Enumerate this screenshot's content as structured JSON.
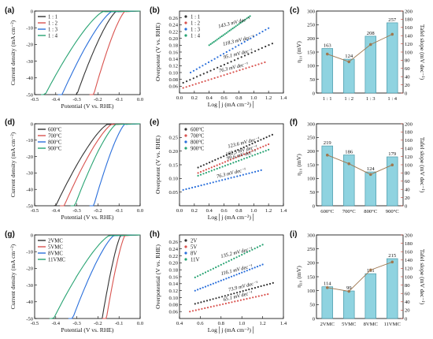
{
  "panels": [
    {
      "id": "a",
      "label": "(a)",
      "type": "line",
      "xlabel": "Potential (V vs. RHE)",
      "ylabel": "Current density (mA cm⁻²)",
      "xlim": [
        -0.5,
        0.0
      ],
      "ylim": [
        -50,
        0
      ],
      "xticks": [
        "-0.5",
        "-0.4",
        "-0.3",
        "-0.2",
        "-0.1",
        "0.0"
      ],
      "yticks": [
        "-50",
        "-40",
        "-30",
        "-20",
        "-10",
        "0"
      ],
      "series": [
        {
          "name": "1 : 1",
          "color": "#333333",
          "onset": -0.11,
          "x50": -0.3
        },
        {
          "name": "1 : 2",
          "color": "#d9534f",
          "onset": -0.07,
          "x50": -0.22
        },
        {
          "name": "1 : 3",
          "color": "#2a6fdb",
          "onset": -0.13,
          "x50": -0.37
        },
        {
          "name": "1 : 4",
          "color": "#27a372",
          "onset": -0.17,
          "x50": -0.45
        }
      ]
    },
    {
      "id": "b",
      "label": "(b)",
      "type": "scatter",
      "xlabel": "Log│j (mA cm⁻²)│",
      "ylabel": "Overpotent (V vs. RHE)",
      "xlim": [
        0.0,
        1.4
      ],
      "ylim": [
        0.04,
        0.28
      ],
      "xticks": [
        "0.0",
        "0.2",
        "0.4",
        "0.6",
        "0.8",
        "1.0",
        "1.2",
        "1.4"
      ],
      "yticks": [
        "0.06",
        "0.08",
        "0.10",
        "0.12",
        "0.14",
        "0.16",
        "0.18",
        "0.20",
        "0.22",
        "0.24",
        "0.26"
      ],
      "series": [
        {
          "name": "1 : 1",
          "color": "#333333",
          "x0": 0.05,
          "x1": 1.25,
          "y0": 0.07,
          "y1": 0.185,
          "tafel": "95.1 mV dec⁻¹"
        },
        {
          "name": "1 : 2",
          "color": "#d9534f",
          "x0": 0.05,
          "x1": 1.15,
          "y0": 0.055,
          "y1": 0.13,
          "tafel": "76.3 mV dec⁻¹"
        },
        {
          "name": "1 : 3",
          "color": "#2a6fdb",
          "x0": 0.15,
          "x1": 1.2,
          "y0": 0.1,
          "y1": 0.23,
          "tafel": "118.3 mV dec⁻¹"
        },
        {
          "name": "1 : 4",
          "color": "#27a372",
          "x0": 0.4,
          "x1": 0.95,
          "y0": 0.18,
          "y1": 0.265,
          "tafel": "143.3 mV dec⁻¹"
        }
      ]
    },
    {
      "id": "c",
      "label": "(c)",
      "type": "bar+line",
      "ylabel": "η₁₀ (mV)",
      "y2label": "Tafel slope (mV dec⁻¹)",
      "categories": [
        "1 : 1",
        "1 : 2",
        "1 : 3",
        "1 : 4"
      ],
      "values": [
        163,
        124,
        208,
        257
      ],
      "tafel": [
        95.1,
        76.3,
        118.3,
        143.3
      ],
      "ylim": [
        0,
        300
      ],
      "y2lim": [
        0,
        200
      ],
      "yticks": [
        "0",
        "50",
        "100",
        "150",
        "200",
        "250",
        "300"
      ],
      "y2ticks": [
        "0",
        "20",
        "40",
        "60",
        "80",
        "100",
        "120",
        "140",
        "160",
        "180",
        "200"
      ]
    },
    {
      "id": "d",
      "label": "(d)",
      "type": "line",
      "xlabel": "Potential (V vs. RHE)",
      "ylabel": "Current density (mA cm⁻²)",
      "xlim": [
        -0.5,
        0.0
      ],
      "ylim": [
        -50,
        0
      ],
      "xticks": [
        "-0.5",
        "-0.4",
        "-0.3",
        "-0.2",
        "-0.1",
        "0.0"
      ],
      "yticks": [
        "-50",
        "-40",
        "-30",
        "-20",
        "-10",
        "0"
      ],
      "series": [
        {
          "name": "600°C",
          "color": "#333333",
          "onset": -0.15,
          "x50": -0.4
        },
        {
          "name": "700°C",
          "color": "#d9534f",
          "onset": -0.13,
          "x50": -0.36
        },
        {
          "name": "800°C",
          "color": "#2a6fdb",
          "onset": -0.07,
          "x50": -0.22
        },
        {
          "name": "900°C",
          "color": "#27a372",
          "onset": -0.11,
          "x50": -0.31
        }
      ]
    },
    {
      "id": "e",
      "label": "(e)",
      "type": "scatter",
      "xlabel": "Log│j (mA cm⁻²)│",
      "ylabel": "Overpotent (V vs. RHE)",
      "xlim": [
        0.0,
        1.4
      ],
      "ylim": [
        0.0,
        0.3
      ],
      "xticks": [
        "0.0",
        "0.2",
        "0.4",
        "0.6",
        "0.8",
        "1.0",
        "1.2",
        "1.4"
      ],
      "yticks": [
        "0.05",
        "0.10",
        "0.15",
        "0.20",
        "0.25"
      ],
      "series": [
        {
          "name": "600°C",
          "color": "#333333",
          "x0": 0.25,
          "x1": 1.25,
          "y0": 0.14,
          "y1": 0.26,
          "tafel": "123.6 mV dec⁻¹"
        },
        {
          "name": "700°C",
          "color": "#d9534f",
          "x0": 0.25,
          "x1": 1.2,
          "y0": 0.12,
          "y1": 0.225,
          "tafel": "102.5 mV dec⁻¹"
        },
        {
          "name": "800°C",
          "color": "#2a6fdb",
          "x0": 0.05,
          "x1": 1.1,
          "y0": 0.058,
          "y1": 0.13,
          "tafel": "76.3 mV dec⁻¹"
        },
        {
          "name": "900°C",
          "color": "#27a372",
          "x0": 0.25,
          "x1": 1.2,
          "y0": 0.11,
          "y1": 0.205,
          "tafel": "99.6 mV dec⁻¹"
        }
      ]
    },
    {
      "id": "f",
      "label": "(f)",
      "type": "bar+line",
      "ylabel": "η₁₀ (mV)",
      "y2label": "Tafel slope (mV dec⁻¹)",
      "categories": [
        "600°C",
        "700°C",
        "800°C",
        "900°C"
      ],
      "values": [
        219,
        186,
        124,
        179
      ],
      "tafel": [
        123.6,
        102.5,
        76.3,
        99.6
      ],
      "ylim": [
        0,
        300
      ],
      "y2lim": [
        0,
        200
      ],
      "yticks": [
        "0",
        "50",
        "100",
        "150",
        "200",
        "250",
        "300"
      ],
      "y2ticks": [
        "0",
        "20",
        "40",
        "60",
        "80",
        "100",
        "120",
        "140",
        "160",
        "180",
        "200"
      ]
    },
    {
      "id": "g",
      "label": "(g)",
      "type": "line",
      "xlabel": "Potential (V vs. RHE)",
      "ylabel": "Current density (mA cm⁻²)",
      "xlim": [
        -0.5,
        0.0
      ],
      "ylim": [
        -50,
        0
      ],
      "xticks": [
        "-0.5",
        "-0.4",
        "-0.3",
        "-0.2",
        "-0.1",
        "0.0"
      ],
      "yticks": [
        "-50",
        "-40",
        "-30",
        "-20",
        "-10",
        "0"
      ],
      "series": [
        {
          "name": "2VMC",
          "color": "#333333",
          "onset": -0.09,
          "x50": -0.18
        },
        {
          "name": "5VMC",
          "color": "#d9534f",
          "onset": -0.07,
          "x50": -0.16
        },
        {
          "name": "8VMC",
          "color": "#2a6fdb",
          "onset": -0.12,
          "x50": -0.32
        },
        {
          "name": "11VMC",
          "color": "#27a372",
          "onset": -0.14,
          "x50": -0.41
        }
      ]
    },
    {
      "id": "h",
      "label": "(h)",
      "type": "scatter",
      "xlabel": "Log│j (mA cm⁻²)│",
      "ylabel": "Overpotential (V vs. RHE)",
      "xlim": [
        0.4,
        1.4
      ],
      "ylim": [
        0.04,
        0.28
      ],
      "xticks": [
        "0.4",
        "0.6",
        "0.8",
        "1.0",
        "1.2",
        "1.4"
      ],
      "yticks": [
        "0.06",
        "0.08",
        "0.10",
        "0.12",
        "0.14",
        "0.16",
        "0.18",
        "0.20",
        "0.22",
        "0.24",
        "0.26"
      ],
      "series": [
        {
          "name": "2V",
          "color": "#333333",
          "x0": 0.55,
          "x1": 1.3,
          "y0": 0.082,
          "y1": 0.142,
          "tafel": "73.9 mV dec⁻¹"
        },
        {
          "name": "5V",
          "color": "#d9534f",
          "x0": 0.5,
          "x1": 1.25,
          "y0": 0.06,
          "y1": 0.11,
          "tafel": "65.1 mV dec⁻¹"
        },
        {
          "name": "8V",
          "color": "#2a6fdb",
          "x0": 0.55,
          "x1": 1.2,
          "y0": 0.12,
          "y1": 0.195,
          "tafel": "116.1 mV dec⁻¹"
        },
        {
          "name": "11V",
          "color": "#27a372",
          "x0": 0.55,
          "x1": 1.2,
          "y0": 0.158,
          "y1": 0.252,
          "tafel": "135.2 mV dec⁻¹"
        }
      ]
    },
    {
      "id": "i",
      "label": "(i)",
      "type": "bar+line",
      "ylabel": "η₁₀ (mV)",
      "y2label": "Tafel slope (mV dec⁻¹)",
      "categories": [
        "2VMC",
        "5VMC",
        "8VMC",
        "11VMC"
      ],
      "values": [
        114,
        99,
        161,
        215
      ],
      "tafel": [
        73.9,
        65.1,
        116.1,
        135.2
      ],
      "ylim": [
        0,
        300
      ],
      "y2lim": [
        0,
        200
      ],
      "yticks": [
        "0",
        "50",
        "100",
        "150",
        "200",
        "250",
        "300"
      ],
      "y2ticks": [
        "0",
        "20",
        "40",
        "60",
        "80",
        "100",
        "120",
        "140",
        "160",
        "180",
        "200"
      ]
    }
  ],
  "colors": {
    "bar_fill": "#8fd3e0",
    "bar_stroke": "#3a8fa0",
    "tafel_line": "#a07850",
    "tafel_axis": "#c0392b"
  }
}
